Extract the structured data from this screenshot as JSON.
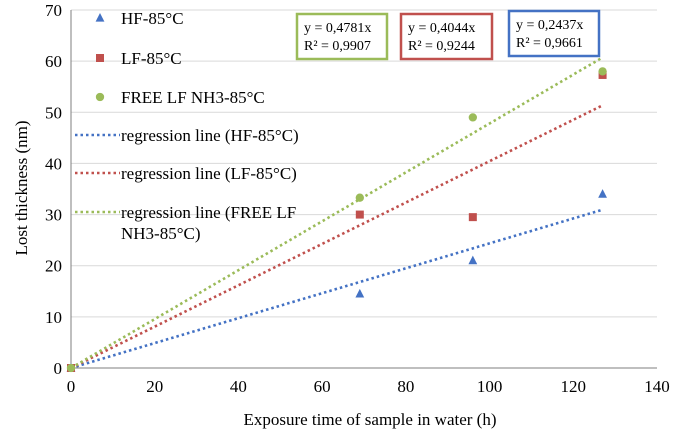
{
  "chart_data": {
    "type": "scatter",
    "xlabel": "Exposure time of sample in water (h)",
    "ylabel": "Lost thickness (nm)",
    "xlim": [
      0,
      140
    ],
    "ylim": [
      0,
      70
    ],
    "xticks": [
      0,
      20,
      40,
      60,
      80,
      100,
      120,
      140
    ],
    "yticks": [
      0,
      10,
      20,
      30,
      40,
      50,
      60,
      70
    ],
    "grid": "horizontal",
    "legend_position": "top-left",
    "series": [
      {
        "name": "HF-85°C",
        "marker": "triangle",
        "color": "#4472c4",
        "x": [
          0,
          69,
          96,
          127
        ],
        "y": [
          0,
          14.5,
          21,
          34
        ]
      },
      {
        "name": "LF-85°C",
        "marker": "square",
        "color": "#c0504d",
        "x": [
          0,
          69,
          96,
          127
        ],
        "y": [
          0,
          30,
          29.5,
          57.3
        ]
      },
      {
        "name": "FREE LF NH3-85°C",
        "marker": "circle",
        "color": "#9bbb59",
        "x": [
          0,
          69,
          96,
          127
        ],
        "y": [
          0,
          33.3,
          49,
          58
        ]
      }
    ],
    "regression_lines": [
      {
        "name": "regression line (HF-85°C)",
        "legend_lines": [
          "regression line (HF-85°C)"
        ],
        "slope": 0.2437,
        "x_end": 127,
        "color": "#4472c4",
        "equation": "y = 0,2437x",
        "r2": "R² = 0,9661"
      },
      {
        "name": "regression line (LF-85°C)",
        "legend_lines": [
          "regression line (LF-85°C)"
        ],
        "slope": 0.4044,
        "x_end": 127,
        "color": "#c0504d",
        "equation": "y = 0,4044x",
        "r2": "R² = 0,9244"
      },
      {
        "name": "regression line (FREE LF NH3-85°C)",
        "legend_lines": [
          "regression line (FREE LF",
          "NH3-85°C)"
        ],
        "slope": 0.4781,
        "x_end": 127,
        "color": "#9bbb59",
        "equation": "y = 0,4781x",
        "r2": "R² = 0,9907"
      }
    ]
  }
}
